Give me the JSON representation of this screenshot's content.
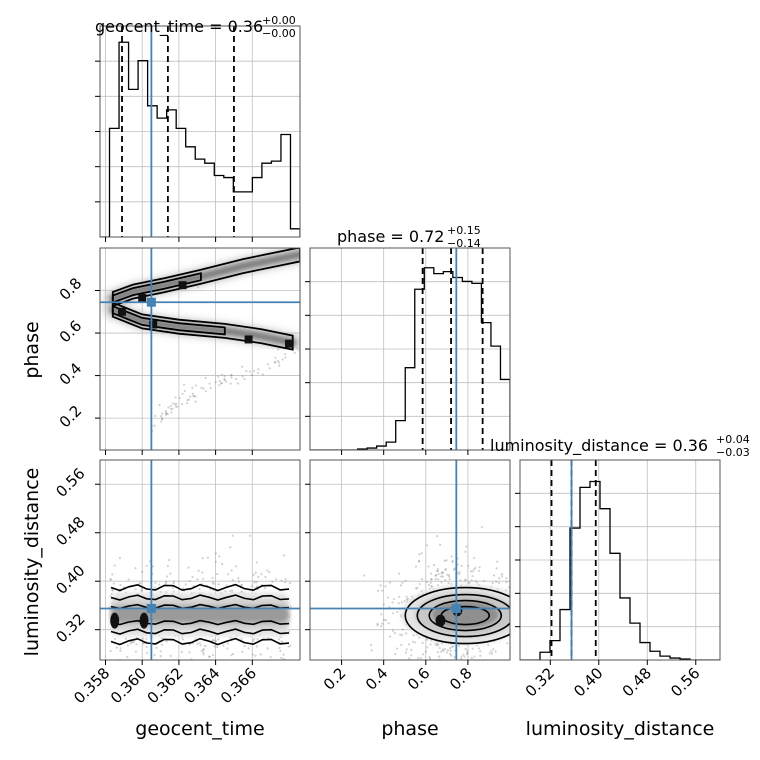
{
  "colors": {
    "truth": "#4682b4",
    "hist": "#000000",
    "quantile": "#000000",
    "grid": "#c0c0c0",
    "points": "#7a7a7a"
  },
  "chart_data": {
    "type": "corner",
    "parameters": [
      "geocent_time",
      "phase",
      "luminosity_distance"
    ],
    "titles": [
      {
        "text": "geocent_time = 0.36",
        "plus": "+0.00",
        "minus": "−0.00"
      },
      {
        "text": "phase = 0.72",
        "plus": "+0.15",
        "minus": "−0.14"
      },
      {
        "text": "luminosity_distance = 0.36",
        "plus": "+0.04",
        "minus": "−0.03"
      }
    ],
    "axes": {
      "geocent_time": {
        "range": [
          0.3577,
          0.3686
        ],
        "ticks": [
          0.358,
          0.36,
          0.362,
          0.364,
          0.366
        ],
        "tick_labels": [
          "0.358",
          "0.360",
          "0.362",
          "0.364",
          "0.366"
        ]
      },
      "phase": {
        "range": [
          0.05,
          1.0
        ],
        "ticks": [
          0.2,
          0.4,
          0.6,
          0.8
        ],
        "tick_labels": [
          "0.2",
          "0.4",
          "0.6",
          "0.8"
        ]
      },
      "luminosity_distance": {
        "range": [
          0.27,
          0.6
        ],
        "ticks": [
          0.32,
          0.4,
          0.48,
          0.56
        ],
        "tick_labels": [
          "0.32",
          "0.40",
          "0.48",
          "0.56"
        ]
      }
    },
    "truths": {
      "geocent_time": 0.3605,
      "phase": 0.745,
      "luminosity_distance": 0.355
    },
    "quantiles": {
      "geocent_time": [
        0.3589,
        0.3614,
        0.365
      ],
      "phase": [
        0.585,
        0.72,
        0.87
      ],
      "luminosity_distance": [
        0.322,
        0.355,
        0.395
      ]
    },
    "histograms": {
      "geocent_time": {
        "range": [
          0.3577,
          0.3686
        ],
        "counts": [
          0.0,
          0.53,
          0.95,
          0.72,
          0.86,
          0.64,
          0.58,
          0.62,
          0.53,
          0.44,
          0.38,
          0.36,
          0.3,
          0.29,
          0.22,
          0.22,
          0.29,
          0.36,
          0.37,
          0.5,
          0.04
        ]
      },
      "phase": {
        "range": [
          0.05,
          1.0
        ],
        "counts": [
          0,
          0,
          0,
          0,
          0,
          0.005,
          0.01,
          0.02,
          0.04,
          0.15,
          0.42,
          0.82,
          0.93,
          0.9,
          0.91,
          0.88,
          0.86,
          0.85,
          0.65,
          0.53,
          0.36
        ]
      },
      "luminosity_distance": {
        "range": [
          0.27,
          0.6
        ],
        "counts": [
          0,
          0,
          0.04,
          0.1,
          0.26,
          0.68,
          0.89,
          0.92,
          0.78,
          0.55,
          0.32,
          0.19,
          0.09,
          0.045,
          0.02,
          0.01,
          0.005,
          0,
          0,
          0
        ]
      }
    },
    "density_2d": {
      "phase_vs_geocent_time": {
        "modes": [
          [
            0.3589,
            0.7
          ],
          [
            0.3606,
            0.64
          ],
          [
            0.36,
            0.765
          ],
          [
            0.3622,
            0.825
          ],
          [
            0.3658,
            0.57
          ],
          [
            0.368,
            0.55
          ]
        ],
        "ridges": [
          [
            [
              0.3584,
              0.76
            ],
            [
              0.3595,
              0.795
            ],
            [
              0.3612,
              0.825
            ],
            [
              0.3632,
              0.865
            ],
            [
              0.3655,
              0.915
            ],
            [
              0.3686,
              0.97
            ]
          ],
          [
            [
              0.3584,
              0.71
            ],
            [
              0.36,
              0.655
            ],
            [
              0.362,
              0.63
            ],
            [
              0.3645,
              0.61
            ],
            [
              0.3665,
              0.585
            ],
            [
              0.3682,
              0.555
            ]
          ],
          [
            [
              0.3605,
              0.16
            ],
            [
              0.362,
              0.28
            ],
            [
              0.364,
              0.37
            ],
            [
              0.366,
              0.42
            ],
            [
              0.3686,
              0.5
            ]
          ]
        ]
      },
      "luminosity_distance_vs_geocent_time": {
        "center_ld": 0.345,
        "modes": [
          [
            0.3585,
            0.335
          ],
          [
            0.3601,
            0.335
          ]
        ]
      },
      "luminosity_distance_vs_phase": {
        "center": [
          0.74,
          0.345
        ],
        "modes": [
          [
            0.67,
            0.335
          ],
          [
            0.75,
            0.352
          ]
        ]
      }
    }
  }
}
